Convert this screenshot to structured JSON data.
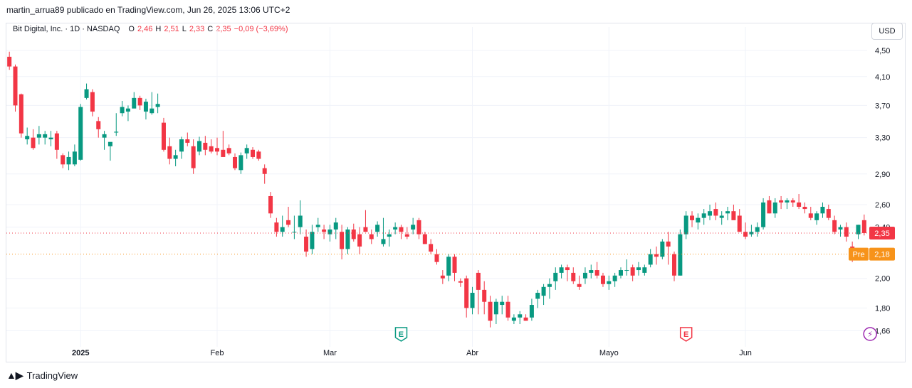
{
  "header": {
    "caption": "martin_arrua89 publicado en TradingView.com, Jun 26, 2025 13:06 UTC+2"
  },
  "legend": {
    "symbol": "Bit Digital, Inc. · 1D · NASDAQ",
    "o_label": "O",
    "o_value": "2,46",
    "h_label": "H",
    "h_value": "2,51",
    "l_label": "L",
    "l_value": "2,33",
    "c_label": "C",
    "c_value": "2,35",
    "change": "−0,09 (−3,69%)"
  },
  "currency_button": "USD",
  "footer": {
    "logo_text": "TradingView"
  },
  "colors": {
    "up": "#089981",
    "down": "#f23645",
    "pre": "#f7931a",
    "earnings_up": "#089981",
    "earnings_down": "#f23645",
    "dividend": "#9c27b0"
  },
  "chart_data": {
    "type": "candlestick",
    "y_axis": {
      "min": 1.6,
      "max": 4.65,
      "scale": "log",
      "ticks": [
        4.5,
        4.1,
        3.7,
        3.3,
        2.9,
        2.6,
        2.4,
        2.0,
        1.8,
        1.66
      ],
      "tick_labels": [
        "4,50",
        "4,10",
        "3,70",
        "3,30",
        "2,90",
        "2,60",
        "2,40",
        "2,00",
        "1,80",
        "1,66"
      ]
    },
    "x_axis": {
      "labels": [
        {
          "label": "2025",
          "index": 12
        },
        {
          "label": "Feb",
          "index": 35
        },
        {
          "label": "Mar",
          "index": 54
        },
        {
          "label": "Abr",
          "index": 78
        },
        {
          "label": "Mayo",
          "index": 101
        },
        {
          "label": "Jun",
          "index": 124
        }
      ]
    },
    "grid": true,
    "last_price": {
      "value": 2.35,
      "label": "2,35"
    },
    "pre_market": {
      "value": 2.18,
      "label": "2,18",
      "tag": "Pre"
    },
    "events": [
      {
        "type": "earnings",
        "text": "E",
        "index": 66,
        "style": "up"
      },
      {
        "type": "earnings",
        "text": "E",
        "index": 114,
        "style": "down"
      },
      {
        "type": "dividend",
        "text": "⚡",
        "index": 145
      }
    ],
    "candles": [
      [
        4.4,
        4.48,
        4.2,
        4.25
      ],
      [
        4.25,
        4.28,
        3.62,
        3.7
      ],
      [
        3.85,
        3.86,
        3.3,
        3.35
      ],
      [
        3.28,
        3.42,
        3.22,
        3.32
      ],
      [
        3.3,
        3.4,
        3.16,
        3.18
      ],
      [
        3.3,
        3.44,
        3.22,
        3.34
      ],
      [
        3.3,
        3.38,
        3.22,
        3.34
      ],
      [
        3.28,
        3.38,
        3.2,
        3.3
      ],
      [
        3.35,
        3.38,
        3.06,
        3.16
      ],
      [
        3.1,
        3.12,
        2.96,
        3.0
      ],
      [
        3.0,
        3.14,
        2.94,
        3.08
      ],
      [
        3.0,
        3.22,
        2.98,
        3.14
      ],
      [
        3.05,
        3.72,
        3.04,
        3.68
      ],
      [
        3.8,
        4.0,
        3.78,
        3.92
      ],
      [
        3.88,
        3.92,
        3.56,
        3.62
      ],
      [
        3.5,
        3.55,
        3.3,
        3.4
      ],
      [
        3.3,
        3.38,
        3.16,
        3.34
      ],
      [
        3.2,
        3.23,
        3.04,
        3.25
      ],
      [
        3.36,
        3.6,
        3.32,
        3.37
      ],
      [
        3.6,
        3.76,
        3.56,
        3.68
      ],
      [
        3.62,
        3.7,
        3.5,
        3.66
      ],
      [
        3.66,
        3.88,
        3.68,
        3.8
      ],
      [
        3.8,
        3.83,
        3.64,
        3.7
      ],
      [
        3.62,
        3.79,
        3.52,
        3.75
      ],
      [
        3.6,
        3.88,
        3.58,
        3.66
      ],
      [
        3.68,
        3.86,
        3.6,
        3.72
      ],
      [
        3.48,
        3.54,
        3.14,
        3.16
      ],
      [
        3.2,
        3.3,
        3.0,
        3.06
      ],
      [
        3.06,
        3.16,
        2.98,
        3.1
      ],
      [
        3.14,
        3.31,
        3.06,
        3.28
      ],
      [
        3.28,
        3.36,
        3.2,
        3.24
      ],
      [
        3.2,
        3.28,
        2.9,
        2.96
      ],
      [
        3.14,
        3.31,
        3.1,
        3.26
      ],
      [
        3.24,
        3.32,
        3.1,
        3.16
      ],
      [
        3.2,
        3.28,
        3.12,
        3.14
      ],
      [
        3.18,
        3.3,
        3.1,
        3.14
      ],
      [
        3.16,
        3.38,
        3.1,
        3.08
      ],
      [
        3.18,
        3.22,
        3.1,
        3.12
      ],
      [
        3.08,
        3.12,
        2.94,
        2.96
      ],
      [
        2.94,
        3.13,
        2.9,
        3.1
      ],
      [
        3.12,
        3.22,
        3.06,
        3.18
      ],
      [
        3.16,
        3.19,
        3.06,
        3.08
      ],
      [
        3.14,
        3.16,
        3.04,
        3.06
      ],
      [
        2.96,
        3.0,
        2.8,
        2.9
      ],
      [
        2.68,
        2.72,
        2.48,
        2.52
      ],
      [
        2.44,
        2.48,
        2.32,
        2.36
      ],
      [
        2.36,
        2.5,
        2.32,
        2.4
      ],
      [
        2.46,
        2.58,
        2.4,
        2.42
      ],
      [
        2.36,
        2.5,
        2.3,
        2.36
      ],
      [
        2.4,
        2.64,
        2.34,
        2.5
      ],
      [
        2.32,
        2.38,
        2.16,
        2.2
      ],
      [
        2.22,
        2.42,
        2.18,
        2.36
      ],
      [
        2.4,
        2.48,
        2.36,
        2.42
      ],
      [
        2.38,
        2.42,
        2.3,
        2.36
      ],
      [
        2.34,
        2.42,
        2.28,
        2.38
      ],
      [
        2.38,
        2.48,
        2.3,
        2.44
      ],
      [
        2.36,
        2.42,
        2.14,
        2.22
      ],
      [
        2.22,
        2.4,
        2.18,
        2.38
      ],
      [
        2.38,
        2.43,
        2.28,
        2.3
      ],
      [
        2.34,
        2.4,
        2.18,
        2.24
      ],
      [
        2.4,
        2.55,
        2.36,
        2.36
      ],
      [
        2.34,
        2.38,
        2.26,
        2.3
      ],
      [
        2.36,
        2.45,
        2.32,
        2.42
      ],
      [
        2.26,
        2.48,
        2.24,
        2.3
      ],
      [
        2.32,
        2.38,
        2.24,
        2.34
      ],
      [
        2.38,
        2.44,
        2.34,
        2.4
      ],
      [
        2.4,
        2.42,
        2.3,
        2.36
      ],
      [
        2.34,
        2.4,
        2.3,
        2.32
      ],
      [
        2.38,
        2.48,
        2.34,
        2.42
      ],
      [
        2.46,
        2.48,
        2.3,
        2.34
      ],
      [
        2.34,
        2.36,
        2.26,
        2.26
      ],
      [
        2.26,
        2.3,
        2.18,
        2.2
      ],
      [
        2.18,
        2.22,
        2.1,
        2.12
      ],
      [
        2.02,
        2.06,
        1.96,
        2.0
      ],
      [
        2.02,
        2.18,
        1.98,
        2.16
      ],
      [
        2.16,
        2.18,
        1.98,
        2.04
      ],
      [
        1.98,
        2.0,
        1.94,
        1.97
      ],
      [
        2.0,
        2.02,
        1.74,
        1.8
      ],
      [
        1.8,
        1.94,
        1.76,
        1.9
      ],
      [
        2.04,
        2.06,
        1.76,
        1.92
      ],
      [
        1.92,
        1.98,
        1.76,
        1.84
      ],
      [
        1.84,
        1.88,
        1.68,
        1.72
      ],
      [
        1.76,
        1.86,
        1.7,
        1.84
      ],
      [
        1.82,
        1.88,
        1.76,
        1.84
      ],
      [
        1.84,
        1.88,
        1.72,
        1.74
      ],
      [
        1.72,
        1.76,
        1.7,
        1.74
      ],
      [
        1.74,
        1.78,
        1.7,
        1.76
      ],
      [
        1.74,
        1.76,
        1.72,
        1.72
      ],
      [
        1.74,
        1.86,
        1.72,
        1.82
      ],
      [
        1.86,
        1.92,
        1.8,
        1.9
      ],
      [
        1.88,
        1.96,
        1.82,
        1.94
      ],
      [
        1.94,
        2.0,
        1.86,
        1.96
      ],
      [
        1.98,
        2.08,
        1.92,
        2.04
      ],
      [
        2.04,
        2.1,
        2.0,
        2.08
      ],
      [
        2.08,
        2.1,
        1.98,
        2.06
      ],
      [
        2.04,
        2.08,
        1.96,
        1.98
      ],
      [
        1.96,
        2.02,
        1.92,
        1.94
      ],
      [
        2.0,
        2.08,
        1.96,
        2.04
      ],
      [
        2.04,
        2.1,
        2.0,
        2.06
      ],
      [
        2.06,
        2.12,
        2.0,
        2.02
      ],
      [
        2.02,
        2.04,
        1.94,
        1.96
      ],
      [
        1.96,
        2.02,
        1.92,
        1.98
      ],
      [
        1.98,
        2.04,
        1.94,
        2.02
      ],
      [
        2.02,
        2.08,
        2.0,
        2.06
      ],
      [
        2.06,
        2.14,
        2.02,
        2.06
      ],
      [
        2.08,
        2.1,
        1.98,
        2.02
      ],
      [
        2.06,
        2.12,
        2.02,
        2.08
      ],
      [
        2.04,
        2.1,
        2.02,
        2.08
      ],
      [
        2.1,
        2.22,
        2.08,
        2.18
      ],
      [
        2.18,
        2.24,
        2.1,
        2.16
      ],
      [
        2.16,
        2.3,
        2.14,
        2.28
      ],
      [
        2.28,
        2.36,
        2.1,
        2.24
      ],
      [
        2.18,
        2.2,
        1.98,
        2.02
      ],
      [
        2.02,
        2.38,
        2.02,
        2.34
      ],
      [
        2.34,
        2.54,
        2.3,
        2.5
      ],
      [
        2.5,
        2.54,
        2.4,
        2.46
      ],
      [
        2.44,
        2.52,
        2.38,
        2.48
      ],
      [
        2.48,
        2.56,
        2.42,
        2.52
      ],
      [
        2.5,
        2.6,
        2.46,
        2.54
      ],
      [
        2.56,
        2.62,
        2.46,
        2.5
      ],
      [
        2.48,
        2.54,
        2.42,
        2.5
      ],
      [
        2.52,
        2.58,
        2.46,
        2.54
      ],
      [
        2.54,
        2.6,
        2.48,
        2.46
      ],
      [
        2.5,
        2.56,
        2.36,
        2.36
      ],
      [
        2.36,
        2.44,
        2.3,
        2.32
      ],
      [
        2.34,
        2.42,
        2.32,
        2.36
      ],
      [
        2.36,
        2.44,
        2.32,
        2.4
      ],
      [
        2.4,
        2.66,
        2.38,
        2.62
      ],
      [
        2.64,
        2.68,
        2.52,
        2.52
      ],
      [
        2.52,
        2.66,
        2.48,
        2.62
      ],
      [
        2.64,
        2.68,
        2.56,
        2.62
      ],
      [
        2.62,
        2.66,
        2.56,
        2.64
      ],
      [
        2.64,
        2.66,
        2.58,
        2.62
      ],
      [
        2.62,
        2.7,
        2.56,
        2.58
      ],
      [
        2.58,
        2.62,
        2.52,
        2.56
      ],
      [
        2.52,
        2.58,
        2.46,
        2.48
      ],
      [
        2.46,
        2.54,
        2.42,
        2.52
      ],
      [
        2.52,
        2.62,
        2.48,
        2.58
      ],
      [
        2.56,
        2.6,
        2.46,
        2.48
      ],
      [
        2.46,
        2.5,
        2.34,
        2.36
      ],
      [
        2.38,
        2.42,
        2.32,
        2.4
      ],
      [
        2.4,
        2.44,
        2.28,
        2.32
      ],
      [
        2.24,
        2.28,
        2.12,
        2.18
      ],
      [
        2.34,
        2.42,
        2.3,
        2.42
      ],
      [
        2.46,
        2.51,
        2.33,
        2.35
      ]
    ]
  }
}
